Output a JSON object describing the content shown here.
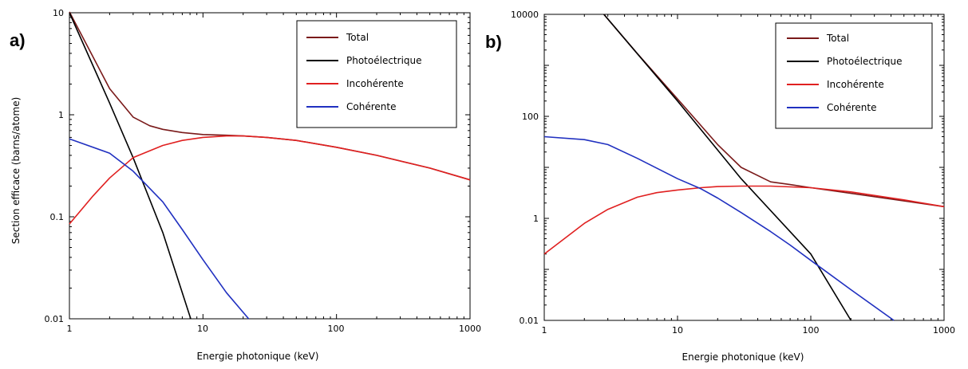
{
  "chart_data": [
    {
      "panel": "a)",
      "type": "line",
      "xlabel": "Energie photonique (keV)",
      "ylabel": "Section efficace (barns/atome)",
      "xscale": "log",
      "yscale": "log",
      "xlim": [
        1,
        1000
      ],
      "ylim": [
        0.01,
        10
      ],
      "xticks": [
        "1",
        "10",
        "100",
        "1000"
      ],
      "yticks": [
        "0.01",
        "0.1",
        "1",
        "10"
      ],
      "legend_position": "top-right",
      "series": [
        {
          "name": "Total",
          "color": "#7a1a1a",
          "x": [
            1,
            1.5,
            2,
            3,
            4,
            5,
            7,
            10,
            15,
            20,
            30,
            50,
            100,
            200,
            500,
            1000
          ],
          "y": [
            10.2,
            3.7,
            1.8,
            0.95,
            0.78,
            0.72,
            0.67,
            0.64,
            0.63,
            0.62,
            0.6,
            0.56,
            0.48,
            0.4,
            0.3,
            0.23
          ]
        },
        {
          "name": "Photoélectrique",
          "color": "#000000",
          "x": [
            1,
            2,
            3,
            5,
            8.1
          ],
          "y": [
            10,
            1.3,
            0.38,
            0.07,
            0.01
          ]
        },
        {
          "name": "Incohérente",
          "color": "#e02020",
          "x": [
            1,
            1.5,
            2,
            3,
            5,
            7,
            10,
            15,
            20,
            30,
            50,
            100,
            200,
            500,
            1000
          ],
          "y": [
            0.085,
            0.16,
            0.24,
            0.38,
            0.5,
            0.56,
            0.6,
            0.62,
            0.62,
            0.6,
            0.56,
            0.48,
            0.4,
            0.3,
            0.23
          ]
        },
        {
          "name": "Cohérente",
          "color": "#2030c0",
          "x": [
            1,
            2,
            3,
            5,
            7,
            10,
            15,
            22
          ],
          "y": [
            0.58,
            0.42,
            0.28,
            0.14,
            0.075,
            0.038,
            0.018,
            0.01
          ]
        }
      ]
    },
    {
      "panel": "b)",
      "type": "line",
      "xlabel": "Energie photonique (keV)",
      "ylabel": "",
      "xscale": "log",
      "yscale": "log",
      "xlim": [
        1,
        1000
      ],
      "ylim": [
        0.01,
        10000
      ],
      "xticks": [
        "1",
        "10",
        "100",
        "1000"
      ],
      "yticks": [
        "0.01",
        "1",
        "100",
        "10000"
      ],
      "legend_position": "top-right",
      "series": [
        {
          "name": "Total",
          "color": "#7a1a1a",
          "x": [
            2.8,
            5,
            10,
            20,
            30,
            50,
            70,
            100,
            200,
            500,
            1000
          ],
          "y": [
            10000,
            1700,
            220,
            28,
            10,
            5.2,
            4.6,
            4.0,
            3.1,
            2.2,
            1.7
          ]
        },
        {
          "name": "Photoélectrique",
          "color": "#000000",
          "x": [
            2.8,
            10,
            30,
            100,
            200
          ],
          "y": [
            10000,
            200,
            6,
            0.2,
            0.01
          ]
        },
        {
          "name": "Incohérente",
          "color": "#e02020",
          "x": [
            1,
            1.5,
            2,
            3,
            5,
            7,
            10,
            15,
            20,
            30,
            50,
            100,
            200,
            500,
            1000
          ],
          "y": [
            0.2,
            0.45,
            0.8,
            1.5,
            2.6,
            3.2,
            3.6,
            4.0,
            4.2,
            4.3,
            4.3,
            4.0,
            3.3,
            2.3,
            1.7
          ]
        },
        {
          "name": "Cohérente",
          "color": "#2030c0",
          "x": [
            1,
            2,
            3,
            5,
            10,
            15,
            20,
            30,
            50,
            70,
            100,
            200,
            420
          ],
          "y": [
            40,
            35,
            28,
            15,
            6,
            3.8,
            2.5,
            1.3,
            0.55,
            0.3,
            0.15,
            0.04,
            0.01
          ]
        }
      ]
    }
  ]
}
